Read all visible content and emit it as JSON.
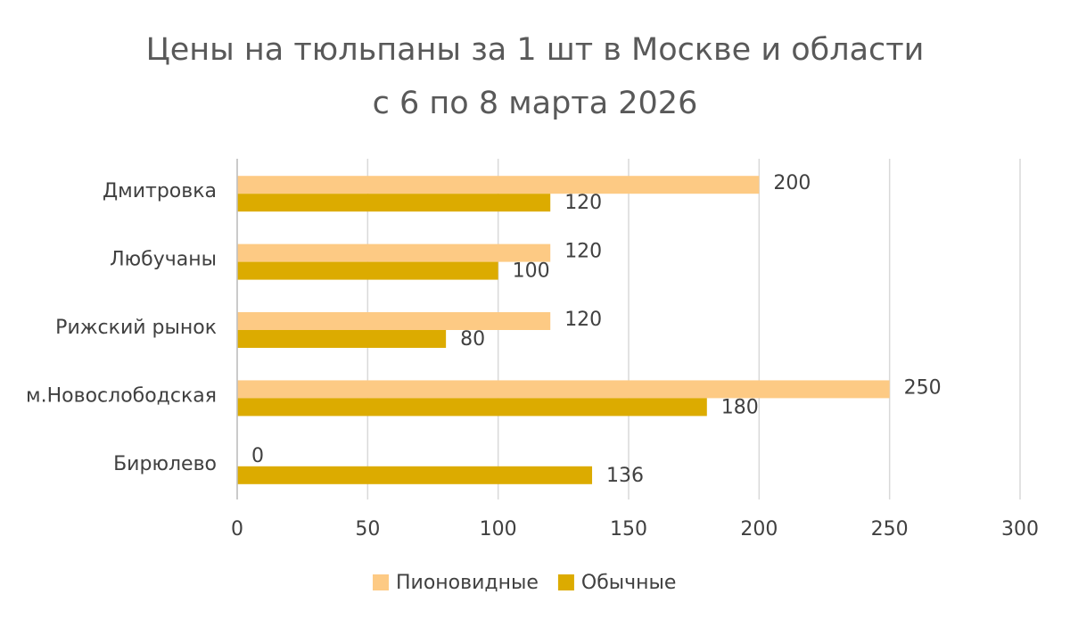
{
  "chart_data": {
    "type": "barh",
    "title": "Цены на тюльпаны за 1 шт в Москве и области с 6 по 8 марта 2026",
    "categories": [
      "Дмитровка",
      "Любучаны",
      "Рижский рынок",
      "м.Новослободская",
      "Бирюлево"
    ],
    "series": [
      {
        "name": "Пионовидные",
        "color": "#fdca84",
        "values": [
          200,
          120,
          120,
          250,
          0
        ]
      },
      {
        "name": "Обычные",
        "color": "#dcab00",
        "values": [
          120,
          100,
          80,
          180,
          136
        ]
      }
    ],
    "xlim": [
      0,
      300
    ],
    "xticks": [
      0,
      50,
      100,
      150,
      200,
      250,
      300
    ],
    "grid": true,
    "legend": "bottom"
  }
}
